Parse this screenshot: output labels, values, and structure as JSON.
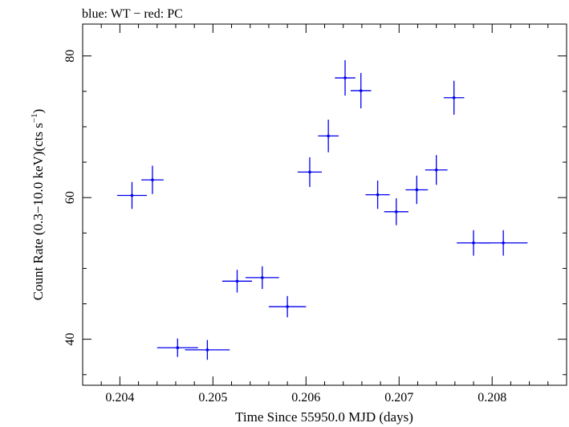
{
  "chart_data": {
    "type": "scatter",
    "title": "blue: WT − red: PC",
    "xlabel": "Time Since 55950.0 MJD (days)",
    "ylabel": "Count Rate (0.3−10.0 keV)(cts s",
    "ylabel_sup": "−1",
    "ylabel_close": ")",
    "xlim": [
      0.2036,
      0.2088
    ],
    "ylim": [
      33.5,
      84.5
    ],
    "x_ticks": [
      0.204,
      0.205,
      0.206,
      0.207,
      0.208
    ],
    "x_tick_labels": [
      "0.204",
      "0.205",
      "0.206",
      "0.207",
      "0.208"
    ],
    "y_ticks": [
      40,
      60,
      80
    ],
    "y_tick_labels": [
      "40",
      "60",
      "80"
    ],
    "grid": false,
    "series": [
      {
        "color": "#0000ee",
        "points": [
          {
            "x": 0.20413,
            "y": 60.3,
            "xerr": 0.00016,
            "yerr": 1.9
          },
          {
            "x": 0.20435,
            "y": 62.5,
            "xerr": 0.00012,
            "yerr": 2.0
          },
          {
            "x": 0.20462,
            "y": 38.8,
            "xerr": 0.00022,
            "yerr": 1.3
          },
          {
            "x": 0.20494,
            "y": 38.5,
            "xerr": 0.00024,
            "yerr": 1.4
          },
          {
            "x": 0.20526,
            "y": 48.2,
            "xerr": 0.00016,
            "yerr": 1.6
          },
          {
            "x": 0.20553,
            "y": 48.7,
            "xerr": 0.00018,
            "yerr": 1.6
          },
          {
            "x": 0.2058,
            "y": 44.6,
            "xerr": 0.0002,
            "yerr": 1.5
          },
          {
            "x": 0.20604,
            "y": 63.6,
            "xerr": 0.00013,
            "yerr": 2.1
          },
          {
            "x": 0.20624,
            "y": 68.7,
            "xerr": 0.00011,
            "yerr": 2.3
          },
          {
            "x": 0.20642,
            "y": 76.9,
            "xerr": 0.00011,
            "yerr": 2.5
          },
          {
            "x": 0.20659,
            "y": 75.1,
            "xerr": 0.00011,
            "yerr": 2.5
          },
          {
            "x": 0.20677,
            "y": 60.4,
            "xerr": 0.00013,
            "yerr": 2.0
          },
          {
            "x": 0.20697,
            "y": 58.0,
            "xerr": 0.00013,
            "yerr": 1.9
          },
          {
            "x": 0.20719,
            "y": 61.1,
            "xerr": 0.00012,
            "yerr": 2.0
          },
          {
            "x": 0.2074,
            "y": 63.9,
            "xerr": 0.00012,
            "yerr": 2.1
          },
          {
            "x": 0.20759,
            "y": 74.1,
            "xerr": 0.00011,
            "yerr": 2.4
          },
          {
            "x": 0.2078,
            "y": 53.6,
            "xerr": 0.00018,
            "yerr": 1.8
          },
          {
            "x": 0.20812,
            "y": 53.6,
            "xerr": 0.00026,
            "yerr": 1.8
          }
        ]
      }
    ]
  }
}
